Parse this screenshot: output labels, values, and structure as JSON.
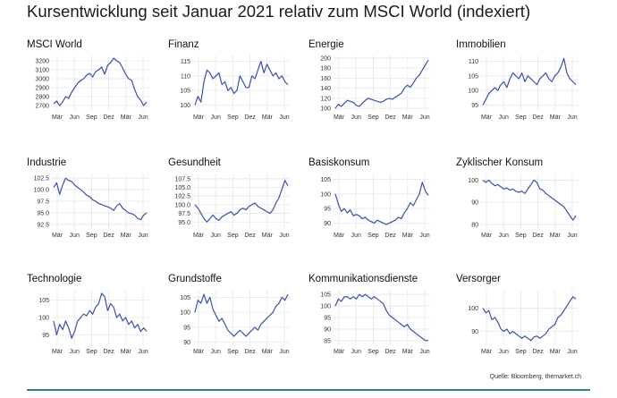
{
  "title": "Kursentwicklung seit Januar 2021 relativ zum MSCI World (indexiert)",
  "source": "Quelle: Bloomberg, themarket.ch",
  "colors": {
    "line": "#3a4fb0",
    "grid": "#e6e6e6",
    "text": "#1a1a1a"
  },
  "chart_data": [
    {
      "type": "line",
      "title": "MSCI World",
      "x_ticks": [
        "Mär",
        "Jun",
        "Sep",
        "Dez",
        "Mär",
        "Jun"
      ],
      "y_ticks": [
        2700,
        2800,
        2900,
        3000,
        3100,
        3200
      ],
      "ylim": [
        2640,
        3260
      ],
      "series": [
        {
          "values": [
            2720,
            2750,
            2700,
            2740,
            2800,
            2780,
            2850,
            2900,
            2950,
            2980,
            3000,
            3040,
            3060,
            3020,
            3080,
            3100,
            3130,
            3050,
            3150,
            3180,
            3230,
            3200,
            3180,
            3120,
            3050,
            3000,
            2980,
            2880,
            2800,
            2760,
            2700,
            2740
          ]
        }
      ]
    },
    {
      "type": "line",
      "title": "Finanz",
      "x_ticks": [
        "Mär",
        "Jun",
        "Sep",
        "Dez",
        "Mär",
        "Jun"
      ],
      "y_ticks": [
        100,
        105,
        110,
        115
      ],
      "ylim": [
        98,
        117
      ],
      "series": [
        {
          "values": [
            100,
            103,
            101,
            108,
            112,
            111,
            109,
            110,
            111,
            107,
            108,
            105,
            106,
            104,
            105,
            110,
            108,
            106,
            106,
            110,
            109,
            112,
            115,
            111,
            114,
            112,
            110,
            111,
            109,
            110,
            108,
            107
          ]
        }
      ]
    },
    {
      "type": "line",
      "title": "Energie",
      "x_ticks": [
        "Mär",
        "Jun",
        "Sep",
        "Dez",
        "Mär",
        "Jun"
      ],
      "y_ticks": [
        100,
        120,
        140,
        160,
        180,
        200
      ],
      "ylim": [
        95,
        205
      ],
      "series": [
        {
          "values": [
            100,
            108,
            104,
            110,
            116,
            114,
            112,
            106,
            104,
            110,
            116,
            120,
            118,
            116,
            114,
            112,
            114,
            118,
            120,
            118,
            122,
            126,
            130,
            140,
            146,
            142,
            150,
            160,
            166,
            176,
            186,
            196
          ]
        }
      ]
    },
    {
      "type": "line",
      "title": "Immobilien",
      "x_ticks": [
        "Mär",
        "Jun",
        "Sep",
        "Dez",
        "Mär",
        "Jun"
      ],
      "y_ticks": [
        95,
        100,
        105,
        110
      ],
      "ylim": [
        93,
        112
      ],
      "series": [
        {
          "values": [
            95,
            97,
            99,
            100,
            101,
            100,
            102,
            103,
            101,
            104,
            106,
            105,
            104,
            106,
            103,
            105,
            104,
            103,
            102,
            104,
            105,
            106,
            104,
            103,
            105,
            106,
            108,
            111,
            106,
            104,
            103,
            102
          ]
        }
      ]
    },
    {
      "type": "line",
      "title": "Industrie",
      "x_ticks": [
        "Mär",
        "Jun",
        "Sep",
        "Dez",
        "Mär",
        "Jun"
      ],
      "y_ticks": [
        92.5,
        95.0,
        97.5,
        100.0,
        102.5
      ],
      "ylim": [
        91.5,
        103.5
      ],
      "series": [
        {
          "values": [
            100.5,
            101.5,
            99.0,
            101.0,
            102.5,
            102.0,
            101.8,
            101.0,
            100.5,
            100.0,
            99.5,
            98.8,
            98.5,
            97.8,
            97.5,
            97.0,
            96.8,
            96.5,
            96.3,
            96.0,
            95.5,
            96.5,
            97.0,
            96.0,
            95.5,
            95.0,
            94.8,
            94.5,
            93.8,
            93.5,
            94.5,
            95.0
          ]
        }
      ]
    },
    {
      "type": "line",
      "title": "Gesundheit",
      "x_ticks": [
        "Mär",
        "Jun",
        "Sep",
        "Dez",
        "Mär",
        "Jun"
      ],
      "y_ticks": [
        95.0,
        97.5,
        100.0,
        102.5,
        105.0,
        107.5
      ],
      "ylim": [
        93,
        109
      ],
      "series": [
        {
          "values": [
            100.0,
            99.0,
            97.5,
            96.0,
            95.0,
            96.0,
            97.0,
            96.0,
            95.5,
            96.5,
            97.0,
            97.5,
            98.0,
            97.0,
            97.5,
            98.5,
            99.0,
            98.5,
            99.5,
            100.0,
            100.5,
            99.5,
            99.0,
            98.5,
            98.0,
            97.5,
            98.5,
            100.5,
            102.0,
            104.5,
            107.0,
            105.5
          ]
        }
      ]
    },
    {
      "type": "line",
      "title": "Basiskonsum",
      "x_ticks": [
        "Mär",
        "Jun",
        "Sep",
        "Dez",
        "Mär",
        "Jun"
      ],
      "y_ticks": [
        90,
        95,
        100,
        105
      ],
      "ylim": [
        88,
        107
      ],
      "series": [
        {
          "values": [
            100.0,
            96.5,
            94.0,
            95.0,
            93.5,
            94.5,
            92.5,
            93.0,
            92.5,
            91.5,
            92.0,
            91.0,
            90.5,
            90.0,
            91.0,
            90.5,
            90.0,
            89.5,
            90.0,
            90.5,
            91.0,
            92.0,
            91.5,
            93.5,
            95.0,
            97.0,
            96.0,
            98.0,
            100.0,
            104.0,
            101.0,
            99.5
          ]
        }
      ]
    },
    {
      "type": "line",
      "title": "Zyklischer Konsum",
      "x_ticks": [
        "Mär",
        "Jun",
        "Sep",
        "Dez",
        "Mär",
        "Jun"
      ],
      "y_ticks": [
        80,
        90,
        100
      ],
      "ylim": [
        78,
        103
      ],
      "series": [
        {
          "values": [
            100.0,
            99.0,
            100.0,
            98.5,
            97.5,
            98.0,
            97.0,
            96.0,
            96.5,
            95.5,
            96.0,
            95.0,
            94.5,
            95.0,
            94.0,
            96.0,
            98.0,
            100.0,
            99.0,
            96.0,
            95.5,
            94.0,
            93.0,
            92.0,
            91.0,
            90.0,
            89.0,
            88.0,
            86.0,
            84.0,
            82.0,
            84.0
          ]
        }
      ]
    },
    {
      "type": "line",
      "title": "Technologie",
      "x_ticks": [
        "Mär",
        "Jun",
        "Sep",
        "Dez",
        "Mär",
        "Jun"
      ],
      "y_ticks": [
        95,
        100,
        105
      ],
      "ylim": [
        92,
        108
      ],
      "series": [
        {
          "values": [
            99.0,
            95.0,
            98.0,
            96.5,
            99.0,
            97.0,
            94.0,
            96.0,
            99.0,
            100.0,
            101.0,
            100.5,
            102.0,
            101.0,
            103.0,
            104.0,
            107.0,
            106.0,
            102.0,
            104.0,
            103.0,
            100.0,
            101.0,
            99.0,
            100.0,
            98.0,
            99.0,
            97.0,
            98.0,
            96.0,
            97.0,
            96.0
          ]
        }
      ]
    },
    {
      "type": "line",
      "title": "Grundstoffe",
      "x_ticks": [
        "Mär",
        "Jun",
        "Sep",
        "Dez",
        "Mär",
        "Jun"
      ],
      "y_ticks": [
        90,
        95,
        100,
        105
      ],
      "ylim": [
        89,
        107.5
      ],
      "series": [
        {
          "values": [
            100,
            104,
            103,
            106,
            103,
            105,
            101,
            99,
            97,
            98,
            96,
            94,
            93,
            92,
            93,
            94,
            93,
            92,
            93,
            94,
            95,
            94,
            96,
            97,
            98,
            99,
            100,
            102,
            103,
            105,
            104,
            106
          ]
        }
      ]
    },
    {
      "type": "line",
      "title": "Kommunikationsdienste",
      "x_ticks": [
        "Mär",
        "Jun",
        "Sep",
        "Dez",
        "Mär",
        "Jun"
      ],
      "y_ticks": [
        85,
        90,
        95,
        100,
        105
      ],
      "ylim": [
        83,
        107
      ],
      "series": [
        {
          "values": [
            100,
            103,
            102,
            104,
            104,
            103,
            104,
            103,
            105,
            104,
            105,
            104,
            103,
            104,
            103,
            102,
            101,
            98,
            96,
            95,
            94,
            93,
            92,
            91,
            92,
            90,
            89,
            88,
            87,
            86,
            85,
            85
          ]
        }
      ]
    },
    {
      "type": "line",
      "title": "Versorger",
      "x_ticks": [
        "Mär",
        "Jun",
        "Sep",
        "Dez",
        "Mär",
        "Jun"
      ],
      "y_ticks": [
        90,
        100
      ],
      "ylim": [
        84,
        108
      ],
      "series": [
        {
          "values": [
            100.0,
            98.0,
            99.0,
            95.0,
            96.0,
            94.0,
            91.0,
            90.0,
            91.0,
            89.0,
            90.0,
            89.0,
            88.0,
            87.0,
            88.0,
            87.0,
            86.0,
            87.5,
            88.0,
            87.0,
            88.0,
            89.0,
            91.0,
            92.0,
            93.0,
            96.0,
            97.0,
            99.0,
            101.0,
            103.0,
            105.0,
            104.0
          ]
        }
      ]
    }
  ]
}
